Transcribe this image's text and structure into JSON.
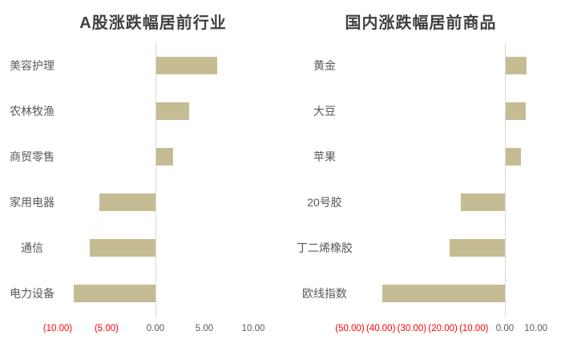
{
  "colors": {
    "bar": "#C5BC93",
    "axis_line": "#D9D9D9",
    "title": "#404040",
    "category_label": "#595959",
    "tick_label": "#595959",
    "tick_label_negative": "#FF0000"
  },
  "chart_data": [
    {
      "type": "bar",
      "orientation": "horizontal",
      "title": "A股涨跌幅居前行业",
      "xlabel": "",
      "ylabel": "",
      "legend": null,
      "grid": false,
      "tick_range": [
        -10,
        10
      ],
      "categories": [
        "美容护理",
        "农林牧渔",
        "商贸零售",
        "家用电器",
        "通信",
        "电力设备"
      ],
      "values": [
        6.2,
        3.4,
        1.7,
        -5.7,
        -6.7,
        -8.4
      ],
      "x_ticks": [
        {
          "value": -10,
          "label": "(10.00)"
        },
        {
          "value": -5,
          "label": "(5.00)"
        },
        {
          "value": 0,
          "label": "0.00"
        },
        {
          "value": 5,
          "label": "5.00"
        },
        {
          "value": 10,
          "label": "10.00"
        }
      ]
    },
    {
      "type": "bar",
      "orientation": "horizontal",
      "title": "国内涨跌幅居前商品",
      "xlabel": "",
      "ylabel": "",
      "legend": null,
      "grid": false,
      "tick_range": [
        -50,
        10
      ],
      "categories": [
        "黄金",
        "大豆",
        "苹果",
        "20号胶",
        "丁二烯橡胶",
        "欧线指数"
      ],
      "values": [
        6.7,
        6.5,
        4.9,
        -14.2,
        -17.8,
        -39.6
      ],
      "x_ticks": [
        {
          "value": -50,
          "label": "(50.00)"
        },
        {
          "value": -40,
          "label": "(40.00)"
        },
        {
          "value": -30,
          "label": "(30.00)"
        },
        {
          "value": -20,
          "label": "(20.00)"
        },
        {
          "value": -10,
          "label": "(10.00)"
        },
        {
          "value": 0,
          "label": "0.00"
        },
        {
          "value": 10,
          "label": "10.00"
        }
      ]
    }
  ]
}
